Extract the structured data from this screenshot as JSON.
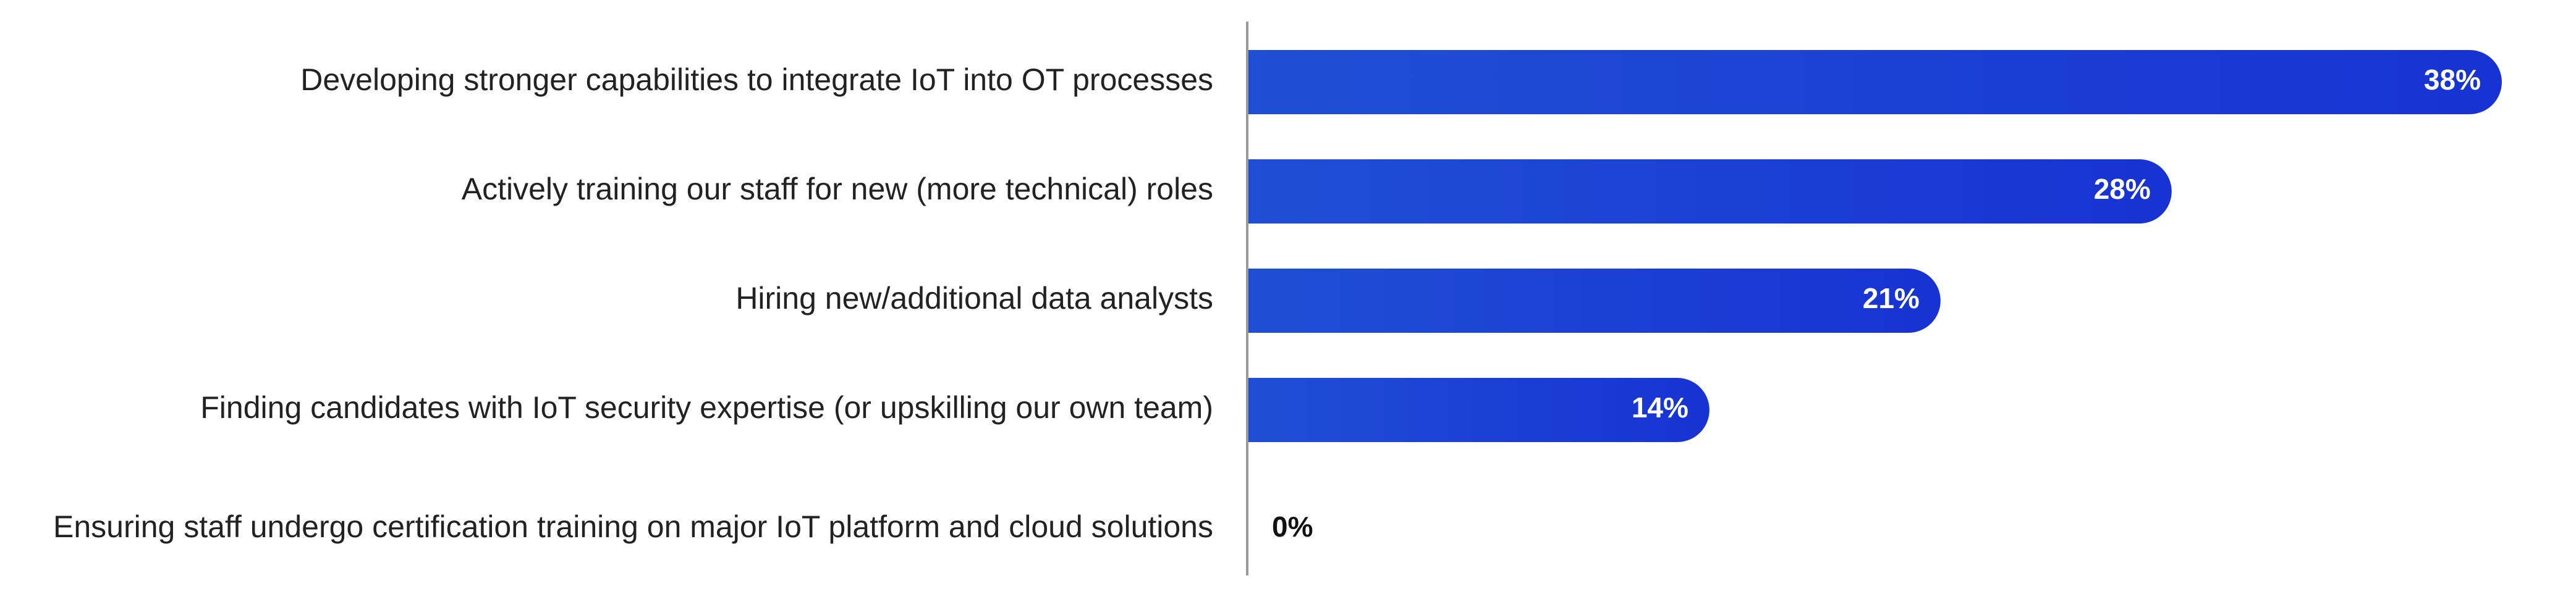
{
  "chart_data": {
    "type": "bar",
    "orientation": "horizontal",
    "categories": [
      "Developing stronger capabilities to integrate IoT into OT processes",
      "Actively training our staff for new (more technical) roles",
      "Hiring new/additional data analysts",
      "Finding candidates with IoT security expertise (or upskilling our own team)",
      "Ensuring staff undergo certification training on major IoT platform and cloud solutions"
    ],
    "values": [
      38,
      28,
      21,
      14,
      0
    ],
    "value_labels": [
      "38%",
      "28%",
      "21%",
      "14%",
      "0%"
    ],
    "unit": "%",
    "xlim": [
      0,
      38
    ],
    "grid": false,
    "legend": "none",
    "colors": {
      "bar_start": "#1f4fd4",
      "bar_end": "#1733d3",
      "label_inside": "#ffffff",
      "label_outside": "#111111",
      "axis": "#9a9a9a",
      "text": "#222222"
    }
  }
}
